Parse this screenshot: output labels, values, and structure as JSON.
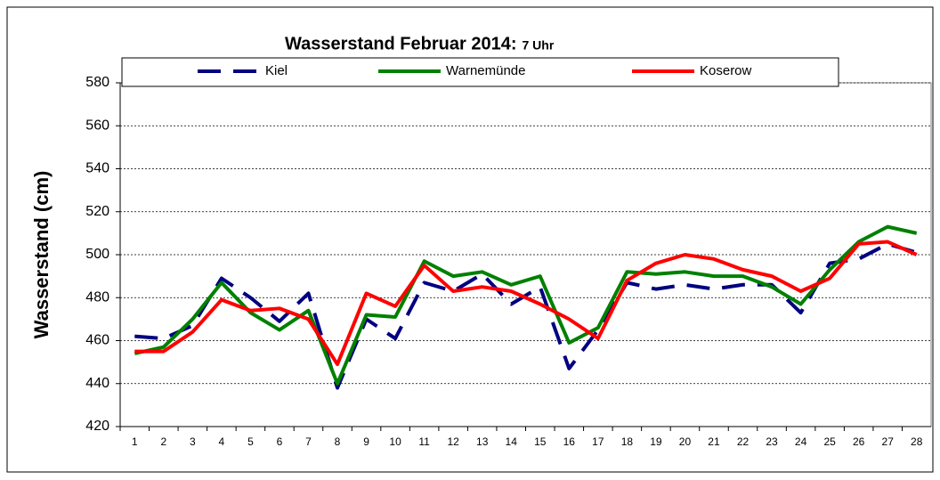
{
  "chart_data": {
    "type": "line",
    "title": "Wasserstand Februar 2014:",
    "title_suffix": "7 Uhr",
    "y_label": "Wasserstand  (cm)",
    "categories": [
      "1",
      "2",
      "3",
      "4",
      "5",
      "6",
      "7",
      "8",
      "9",
      "10",
      "11",
      "12",
      "13",
      "14",
      "15",
      "16",
      "17",
      "18",
      "19",
      "20",
      "21",
      "22",
      "23",
      "24",
      "25",
      "26",
      "27",
      "28"
    ],
    "series": [
      {
        "name": "Kiel",
        "color": "#000080",
        "dashed": true,
        "values": [
          462,
          461,
          467,
          489,
          480,
          469,
          482,
          438,
          470,
          461,
          487,
          483,
          491,
          477,
          485,
          447,
          465,
          487,
          484,
          486,
          484,
          486,
          486,
          473,
          496,
          498,
          505,
          501
        ]
      },
      {
        "name": "Warnemünde",
        "color": "#008000",
        "dashed": false,
        "values": [
          454,
          457,
          470,
          487,
          473,
          465,
          474,
          440,
          472,
          471,
          497,
          490,
          492,
          486,
          490,
          459,
          466,
          492,
          491,
          492,
          490,
          490,
          485,
          477,
          493,
          506,
          513,
          510
        ]
      },
      {
        "name": "Koserow",
        "color": "#ff0000",
        "dashed": false,
        "values": [
          455,
          455,
          464,
          479,
          474,
          475,
          470,
          449,
          482,
          476,
          495,
          483,
          485,
          483,
          477,
          470,
          461,
          488,
          496,
          500,
          498,
          493,
          490,
          483,
          489,
          505,
          506,
          500
        ]
      }
    ],
    "ylim": [
      420,
      580
    ],
    "yticks": [
      420,
      440,
      460,
      480,
      500,
      520,
      540,
      560,
      580
    ],
    "grid": true,
    "legend": "top"
  }
}
